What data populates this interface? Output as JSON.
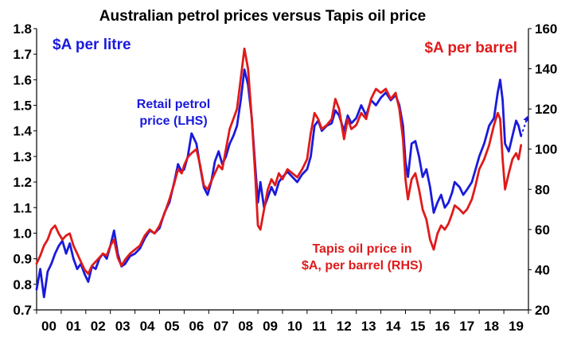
{
  "chart_data": {
    "type": "line",
    "title": "Australian petrol prices versus Tapis oil price",
    "left_axis": {
      "label": "$A per litre",
      "ylim": [
        0.7,
        1.8
      ],
      "ticks": [
        "0.7",
        "0.8",
        "0.9",
        "1.0",
        "1.1",
        "1.2",
        "1.3",
        "1.4",
        "1.5",
        "1.6",
        "1.7",
        "1.8"
      ],
      "color": "#1a1adc"
    },
    "right_axis": {
      "label": "$A per barrel",
      "ylim": [
        20,
        160
      ],
      "ticks": [
        "20",
        "40",
        "60",
        "80",
        "100",
        "120",
        "140",
        "160"
      ],
      "color": "#e01a1a"
    },
    "x_axis": {
      "xlim": [
        2000,
        2020
      ],
      "ticks": [
        "00",
        "01",
        "02",
        "03",
        "04",
        "05",
        "06",
        "07",
        "08",
        "09",
        "10",
        "11",
        "12",
        "13",
        "14",
        "15",
        "16",
        "17",
        "18",
        "19"
      ]
    },
    "grid": false,
    "series": [
      {
        "name": "Retail petrol price (LHS)",
        "label_lines": [
          "Retail petrol",
          "price (LHS)"
        ],
        "axis": "left",
        "color": "#1a1adc",
        "points": [
          [
            2000.0,
            0.78
          ],
          [
            2000.15,
            0.86
          ],
          [
            2000.3,
            0.75
          ],
          [
            2000.45,
            0.85
          ],
          [
            2000.6,
            0.88
          ],
          [
            2000.75,
            0.92
          ],
          [
            2000.9,
            0.95
          ],
          [
            2001.05,
            0.97
          ],
          [
            2001.2,
            0.92
          ],
          [
            2001.35,
            0.96
          ],
          [
            2001.5,
            0.9
          ],
          [
            2001.65,
            0.86
          ],
          [
            2001.8,
            0.88
          ],
          [
            2001.95,
            0.84
          ],
          [
            2002.1,
            0.81
          ],
          [
            2002.25,
            0.87
          ],
          [
            2002.4,
            0.86
          ],
          [
            2002.55,
            0.9
          ],
          [
            2002.7,
            0.92
          ],
          [
            2002.85,
            0.9
          ],
          [
            2003.0,
            0.95
          ],
          [
            2003.15,
            1.01
          ],
          [
            2003.3,
            0.92
          ],
          [
            2003.45,
            0.87
          ],
          [
            2003.6,
            0.88
          ],
          [
            2003.8,
            0.91
          ],
          [
            2004.0,
            0.92
          ],
          [
            2004.2,
            0.94
          ],
          [
            2004.4,
            0.98
          ],
          [
            2004.6,
            1.01
          ],
          [
            2004.8,
            1.0
          ],
          [
            2005.0,
            1.02
          ],
          [
            2005.2,
            1.08
          ],
          [
            2005.4,
            1.12
          ],
          [
            2005.6,
            1.2
          ],
          [
            2005.75,
            1.27
          ],
          [
            2005.9,
            1.24
          ],
          [
            2006.0,
            1.25
          ],
          [
            2006.15,
            1.3
          ],
          [
            2006.3,
            1.39
          ],
          [
            2006.5,
            1.35
          ],
          [
            2006.65,
            1.26
          ],
          [
            2006.8,
            1.18
          ],
          [
            2006.95,
            1.15
          ],
          [
            2007.1,
            1.2
          ],
          [
            2007.25,
            1.28
          ],
          [
            2007.4,
            1.32
          ],
          [
            2007.55,
            1.27
          ],
          [
            2007.7,
            1.3
          ],
          [
            2007.85,
            1.35
          ],
          [
            2008.0,
            1.38
          ],
          [
            2008.15,
            1.42
          ],
          [
            2008.3,
            1.52
          ],
          [
            2008.45,
            1.64
          ],
          [
            2008.6,
            1.58
          ],
          [
            2008.75,
            1.45
          ],
          [
            2008.9,
            1.25
          ],
          [
            2009.0,
            1.12
          ],
          [
            2009.1,
            1.2
          ],
          [
            2009.25,
            1.1
          ],
          [
            2009.4,
            1.14
          ],
          [
            2009.55,
            1.18
          ],
          [
            2009.7,
            1.15
          ],
          [
            2009.85,
            1.2
          ],
          [
            2010.0,
            1.22
          ],
          [
            2010.2,
            1.24
          ],
          [
            2010.4,
            1.22
          ],
          [
            2010.6,
            1.2
          ],
          [
            2010.8,
            1.23
          ],
          [
            2011.0,
            1.25
          ],
          [
            2011.15,
            1.3
          ],
          [
            2011.3,
            1.42
          ],
          [
            2011.45,
            1.44
          ],
          [
            2011.6,
            1.4
          ],
          [
            2011.8,
            1.42
          ],
          [
            2012.0,
            1.43
          ],
          [
            2012.15,
            1.48
          ],
          [
            2012.3,
            1.46
          ],
          [
            2012.5,
            1.4
          ],
          [
            2012.65,
            1.46
          ],
          [
            2012.8,
            1.43
          ],
          [
            2013.0,
            1.45
          ],
          [
            2013.2,
            1.5
          ],
          [
            2013.4,
            1.46
          ],
          [
            2013.6,
            1.52
          ],
          [
            2013.8,
            1.5
          ],
          [
            2014.0,
            1.53
          ],
          [
            2014.2,
            1.55
          ],
          [
            2014.4,
            1.52
          ],
          [
            2014.6,
            1.54
          ],
          [
            2014.75,
            1.5
          ],
          [
            2014.9,
            1.42
          ],
          [
            2015.0,
            1.28
          ],
          [
            2015.1,
            1.22
          ],
          [
            2015.25,
            1.35
          ],
          [
            2015.4,
            1.36
          ],
          [
            2015.55,
            1.3
          ],
          [
            2015.7,
            1.22
          ],
          [
            2015.85,
            1.25
          ],
          [
            2016.0,
            1.18
          ],
          [
            2016.15,
            1.08
          ],
          [
            2016.3,
            1.12
          ],
          [
            2016.45,
            1.15
          ],
          [
            2016.6,
            1.1
          ],
          [
            2016.75,
            1.12
          ],
          [
            2016.9,
            1.16
          ],
          [
            2017.0,
            1.2
          ],
          [
            2017.2,
            1.18
          ],
          [
            2017.35,
            1.15
          ],
          [
            2017.5,
            1.17
          ],
          [
            2017.7,
            1.2
          ],
          [
            2017.85,
            1.25
          ],
          [
            2018.0,
            1.3
          ],
          [
            2018.2,
            1.35
          ],
          [
            2018.4,
            1.42
          ],
          [
            2018.6,
            1.45
          ],
          [
            2018.75,
            1.55
          ],
          [
            2018.85,
            1.6
          ],
          [
            2018.95,
            1.52
          ],
          [
            2019.05,
            1.35
          ],
          [
            2019.2,
            1.32
          ],
          [
            2019.35,
            1.38
          ],
          [
            2019.5,
            1.44
          ],
          [
            2019.6,
            1.42
          ],
          [
            2019.7,
            1.38
          ]
        ],
        "projection": [
          [
            2019.7,
            1.38
          ],
          [
            2019.95,
            1.45
          ]
        ]
      },
      {
        "name": "Tapis oil price in $A, per barrel (RHS)",
        "label_lines": [
          "Tapis oil price in",
          "$A, per barrel (RHS)"
        ],
        "axis": "right",
        "color": "#e01a1a",
        "points": [
          [
            2000.0,
            43
          ],
          [
            2000.15,
            47
          ],
          [
            2000.3,
            52
          ],
          [
            2000.45,
            55
          ],
          [
            2000.6,
            60
          ],
          [
            2000.75,
            62
          ],
          [
            2000.9,
            58
          ],
          [
            2001.05,
            55
          ],
          [
            2001.2,
            57
          ],
          [
            2001.35,
            58
          ],
          [
            2001.5,
            52
          ],
          [
            2001.65,
            48
          ],
          [
            2001.8,
            44
          ],
          [
            2001.95,
            40
          ],
          [
            2002.1,
            38
          ],
          [
            2002.25,
            42
          ],
          [
            2002.4,
            44
          ],
          [
            2002.55,
            46
          ],
          [
            2002.7,
            48
          ],
          [
            2002.85,
            47
          ],
          [
            2003.0,
            52
          ],
          [
            2003.15,
            55
          ],
          [
            2003.3,
            46
          ],
          [
            2003.45,
            42
          ],
          [
            2003.6,
            45
          ],
          [
            2003.8,
            48
          ],
          [
            2004.0,
            50
          ],
          [
            2004.2,
            52
          ],
          [
            2004.4,
            57
          ],
          [
            2004.6,
            60
          ],
          [
            2004.8,
            58
          ],
          [
            2005.0,
            62
          ],
          [
            2005.2,
            68
          ],
          [
            2005.4,
            75
          ],
          [
            2005.6,
            83
          ],
          [
            2005.75,
            90
          ],
          [
            2005.9,
            88
          ],
          [
            2006.0,
            92
          ],
          [
            2006.15,
            96
          ],
          [
            2006.3,
            98
          ],
          [
            2006.5,
            100
          ],
          [
            2006.65,
            92
          ],
          [
            2006.8,
            82
          ],
          [
            2006.95,
            80
          ],
          [
            2007.1,
            84
          ],
          [
            2007.25,
            88
          ],
          [
            2007.4,
            92
          ],
          [
            2007.55,
            90
          ],
          [
            2007.7,
            100
          ],
          [
            2007.85,
            110
          ],
          [
            2008.0,
            115
          ],
          [
            2008.15,
            120
          ],
          [
            2008.3,
            135
          ],
          [
            2008.45,
            150
          ],
          [
            2008.6,
            140
          ],
          [
            2008.75,
            115
          ],
          [
            2008.9,
            85
          ],
          [
            2009.0,
            62
          ],
          [
            2009.1,
            60
          ],
          [
            2009.25,
            70
          ],
          [
            2009.4,
            80
          ],
          [
            2009.55,
            85
          ],
          [
            2009.7,
            82
          ],
          [
            2009.85,
            88
          ],
          [
            2010.0,
            85
          ],
          [
            2010.2,
            90
          ],
          [
            2010.4,
            88
          ],
          [
            2010.6,
            86
          ],
          [
            2010.8,
            90
          ],
          [
            2011.0,
            95
          ],
          [
            2011.15,
            108
          ],
          [
            2011.3,
            118
          ],
          [
            2011.45,
            115
          ],
          [
            2011.6,
            110
          ],
          [
            2011.8,
            112
          ],
          [
            2012.0,
            115
          ],
          [
            2012.15,
            125
          ],
          [
            2012.3,
            120
          ],
          [
            2012.5,
            105
          ],
          [
            2012.65,
            115
          ],
          [
            2012.8,
            110
          ],
          [
            2013.0,
            112
          ],
          [
            2013.2,
            118
          ],
          [
            2013.4,
            115
          ],
          [
            2013.6,
            125
          ],
          [
            2013.8,
            130
          ],
          [
            2014.0,
            128
          ],
          [
            2014.2,
            130
          ],
          [
            2014.4,
            125
          ],
          [
            2014.6,
            128
          ],
          [
            2014.75,
            120
          ],
          [
            2014.9,
            105
          ],
          [
            2015.0,
            85
          ],
          [
            2015.1,
            75
          ],
          [
            2015.25,
            85
          ],
          [
            2015.4,
            88
          ],
          [
            2015.55,
            80
          ],
          [
            2015.7,
            70
          ],
          [
            2015.85,
            65
          ],
          [
            2016.0,
            55
          ],
          [
            2016.15,
            50
          ],
          [
            2016.3,
            58
          ],
          [
            2016.45,
            62
          ],
          [
            2016.6,
            60
          ],
          [
            2016.75,
            63
          ],
          [
            2016.9,
            68
          ],
          [
            2017.0,
            72
          ],
          [
            2017.2,
            70
          ],
          [
            2017.35,
            68
          ],
          [
            2017.5,
            70
          ],
          [
            2017.7,
            75
          ],
          [
            2017.85,
            82
          ],
          [
            2018.0,
            90
          ],
          [
            2018.2,
            95
          ],
          [
            2018.4,
            102
          ],
          [
            2018.6,
            112
          ],
          [
            2018.75,
            118
          ],
          [
            2018.85,
            115
          ],
          [
            2018.95,
            95
          ],
          [
            2019.05,
            80
          ],
          [
            2019.2,
            88
          ],
          [
            2019.35,
            95
          ],
          [
            2019.5,
            98
          ],
          [
            2019.6,
            95
          ],
          [
            2019.7,
            102
          ]
        ]
      }
    ]
  }
}
